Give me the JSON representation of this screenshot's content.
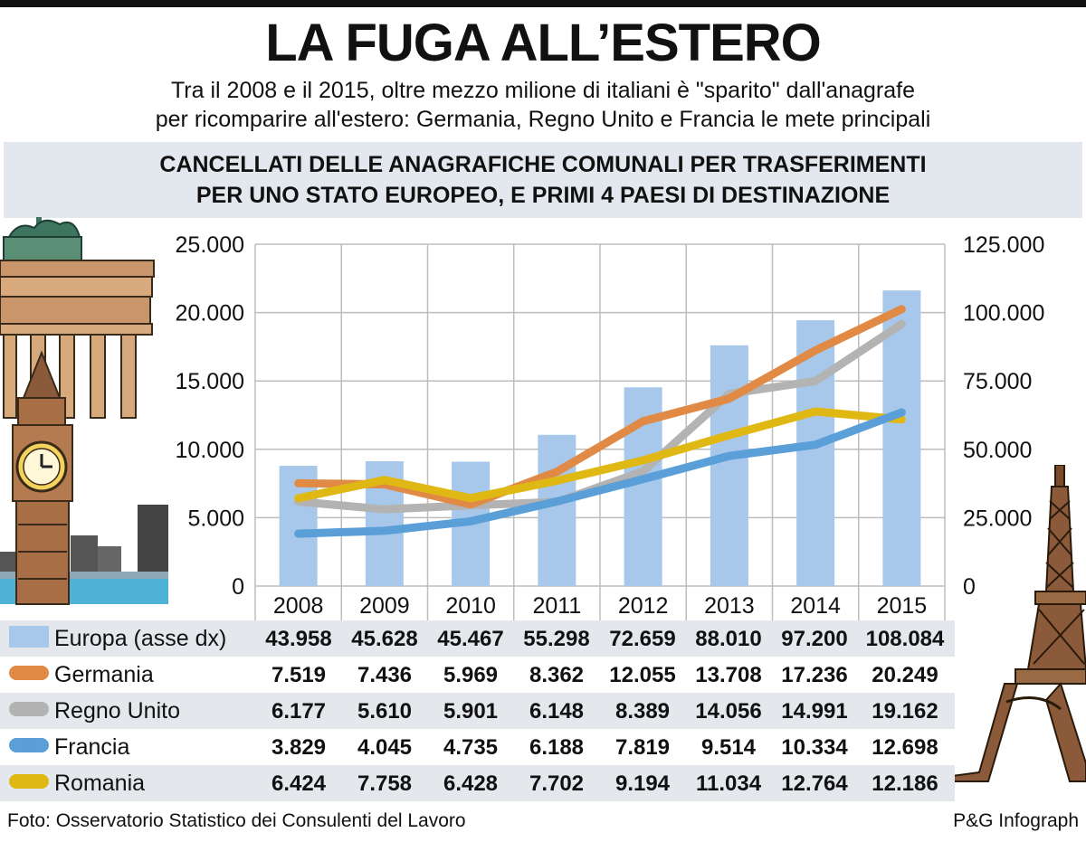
{
  "header": {
    "title": "LA FUGA ALL’ESTERO",
    "subtitle_line1": "Tra il 2008 e il 2015, oltre mezzo milione di italiani è \"sparito\" dall'anagrafe",
    "subtitle_line2": "per ricomparire all'estero: Germania, Regno Unito e Francia le mete principali"
  },
  "band": {
    "line1": "CANCELLATI DELLE ANAGRAFICHE COMUNALI PER TRASFERIMENTI",
    "line2": "PER UNO STATO EUROPEO, E PRIMI 4 PAESI DI DESTINAZIONE"
  },
  "chart_data": {
    "type": "bar+line",
    "categories": [
      "2008",
      "2009",
      "2010",
      "2011",
      "2012",
      "2013",
      "2014",
      "2015"
    ],
    "left_axis": {
      "ticks": [
        "25.000",
        "20.000",
        "15.000",
        "10.000",
        "5.000",
        "0"
      ],
      "ylim": [
        0,
        25000
      ]
    },
    "right_axis": {
      "ticks": [
        "125.000",
        "100.000",
        "75.000",
        "50.000",
        "25.000",
        "0"
      ],
      "ylim": [
        0,
        125000
      ]
    },
    "bars": {
      "name": "Europa (asse dx)",
      "color": "#a7c8ea",
      "axis": "right",
      "values": [
        43958,
        45628,
        45467,
        55298,
        72659,
        88010,
        97200,
        108084
      ]
    },
    "series": [
      {
        "name": "Germania",
        "color": "#e08a45",
        "values": [
          7519,
          7436,
          5969,
          8362,
          12055,
          13708,
          17236,
          20249
        ]
      },
      {
        "name": "Regno Unito",
        "color": "#b3b3b3",
        "values": [
          6177,
          5610,
          5901,
          6148,
          8389,
          14056,
          14991,
          19162
        ]
      },
      {
        "name": "Francia",
        "color": "#5a9fd8",
        "values": [
          3829,
          4045,
          4735,
          6188,
          7819,
          9514,
          10334,
          12698
        ]
      },
      {
        "name": "Romania",
        "color": "#e0b814",
        "values": [
          6424,
          7758,
          6428,
          7702,
          9194,
          11034,
          12764,
          12186
        ]
      }
    ],
    "grid": true
  },
  "table": {
    "rows": [
      {
        "label": "Europa (asse dx)",
        "values": [
          "43.958",
          "45.628",
          "45.467",
          "55.298",
          "72.659",
          "88.010",
          "97.200",
          "108.084"
        ]
      },
      {
        "label": "Germania",
        "values": [
          "7.519",
          "7.436",
          "5.969",
          "8.362",
          "12.055",
          "13.708",
          "17.236",
          "20.249"
        ]
      },
      {
        "label": "Regno Unito",
        "values": [
          "6.177",
          "5.610",
          "5.901",
          "6.148",
          "8.389",
          "14.056",
          "14.991",
          "19.162"
        ]
      },
      {
        "label": "Francia",
        "values": [
          "3.829",
          "4.045",
          "4.735",
          "6.188",
          "7.819",
          "9.514",
          "10.334",
          "12.698"
        ]
      },
      {
        "label": "Romania",
        "values": [
          "6.424",
          "7.758",
          "6.428",
          "7.702",
          "9.194",
          "11.034",
          "12.764",
          "12.186"
        ]
      }
    ]
  },
  "footer": {
    "source": "Foto: Osservatorio Statistico dei Consulenti del Lavoro",
    "credit": "P&G Infograph"
  },
  "decorations": [
    "brandenburg-gate-illustration",
    "big-ben-illustration",
    "eiffel-tower-illustration"
  ]
}
